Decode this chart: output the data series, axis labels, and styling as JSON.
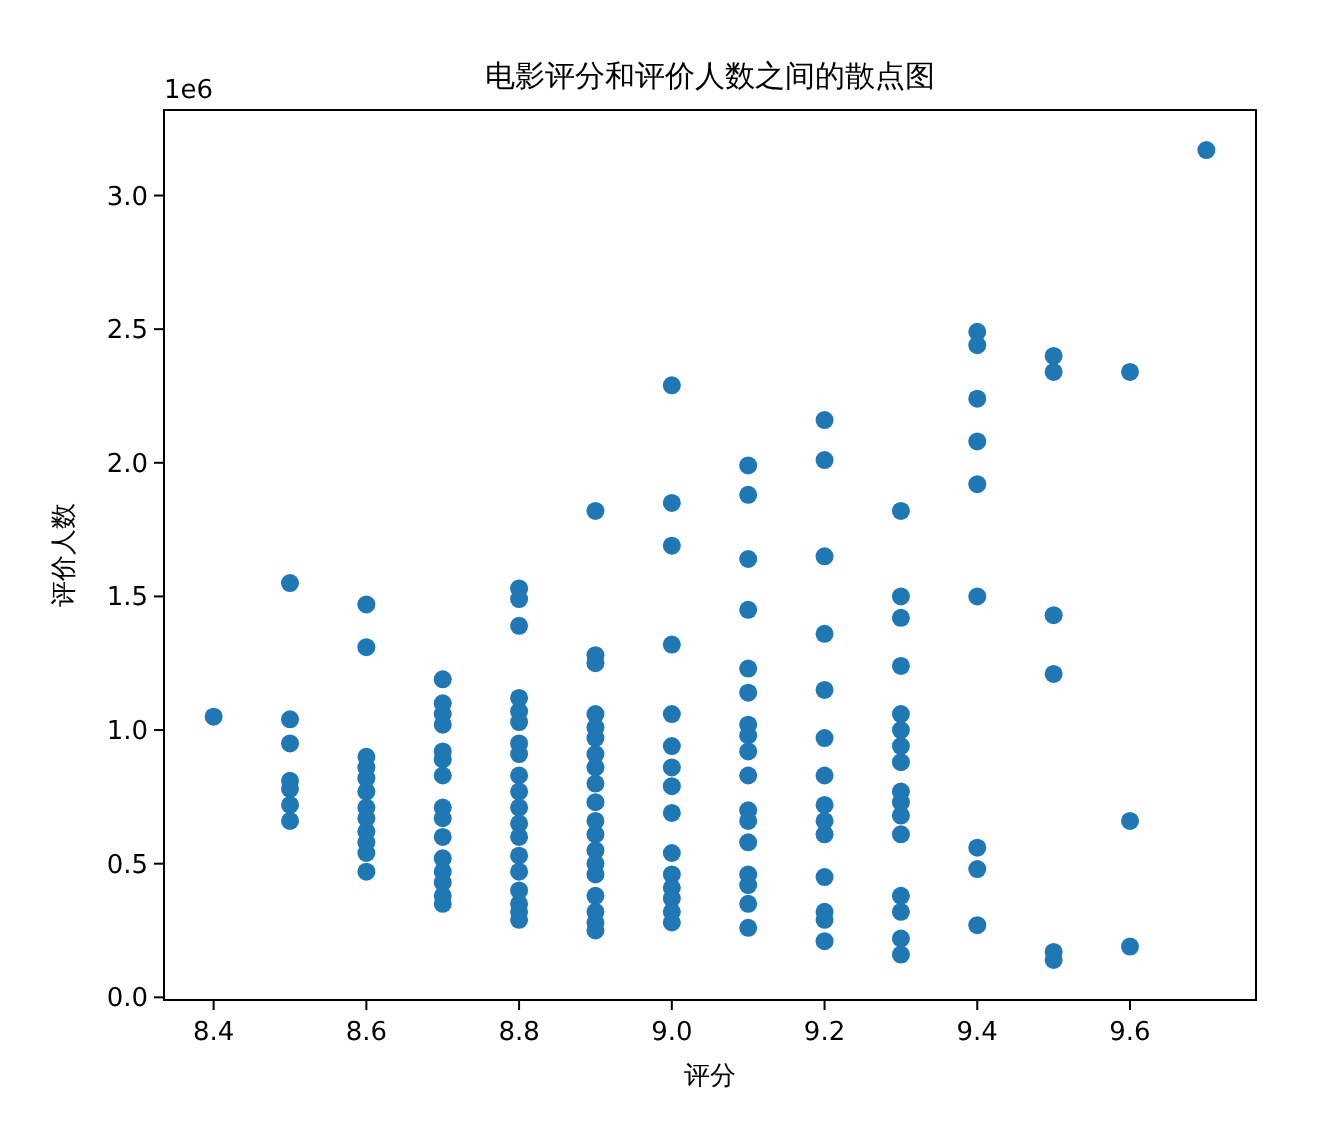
{
  "chart_data": {
    "type": "scatter",
    "title": "电影评分和评价人数之间的散点图",
    "xlabel": "评分",
    "ylabel": "评价人数",
    "annotations": [
      "1e6"
    ],
    "series": [
      {
        "color": "#1f77b4",
        "x": [
          8.4,
          8.5,
          8.5,
          8.5,
          8.5,
          8.5,
          8.5,
          8.5,
          8.6,
          8.6,
          8.6,
          8.6,
          8.6,
          8.6,
          8.6,
          8.6,
          8.6,
          8.6,
          8.6,
          8.6,
          8.7,
          8.7,
          8.7,
          8.7,
          8.7,
          8.7,
          8.7,
          8.7,
          8.7,
          8.7,
          8.7,
          8.7,
          8.7,
          8.7,
          8.7,
          8.8,
          8.8,
          8.8,
          8.8,
          8.8,
          8.8,
          8.8,
          8.8,
          8.8,
          8.8,
          8.8,
          8.8,
          8.8,
          8.8,
          8.8,
          8.8,
          8.8,
          8.8,
          8.8,
          8.9,
          8.9,
          8.9,
          8.9,
          8.9,
          8.9,
          8.9,
          8.9,
          8.9,
          8.9,
          8.9,
          8.9,
          8.9,
          8.9,
          8.9,
          8.9,
          8.9,
          8.9,
          8.9,
          9.0,
          9.0,
          9.0,
          9.0,
          9.0,
          9.0,
          9.0,
          9.0,
          9.0,
          9.0,
          9.0,
          9.0,
          9.0,
          9.0,
          9.0,
          9.1,
          9.1,
          9.1,
          9.1,
          9.1,
          9.1,
          9.1,
          9.1,
          9.1,
          9.1,
          9.1,
          9.1,
          9.1,
          9.1,
          9.1,
          9.1,
          9.1,
          9.2,
          9.2,
          9.2,
          9.2,
          9.2,
          9.2,
          9.2,
          9.2,
          9.2,
          9.2,
          9.2,
          9.2,
          9.2,
          9.2,
          9.3,
          9.3,
          9.3,
          9.3,
          9.3,
          9.3,
          9.3,
          9.3,
          9.3,
          9.3,
          9.3,
          9.3,
          9.3,
          9.3,
          9.3,
          9.3,
          9.4,
          9.4,
          9.4,
          9.4,
          9.4,
          9.4,
          9.4,
          9.4,
          9.4,
          9.5,
          9.5,
          9.5,
          9.5,
          9.5,
          9.5,
          9.6,
          9.6,
          9.6,
          9.7
        ],
        "values": [
          1.05,
          1.55,
          1.04,
          0.95,
          0.81,
          0.78,
          0.72,
          0.66,
          1.47,
          1.31,
          0.9,
          0.86,
          0.82,
          0.77,
          0.71,
          0.67,
          0.62,
          0.58,
          0.54,
          0.47,
          1.19,
          1.1,
          1.06,
          1.02,
          0.92,
          0.89,
          0.83,
          0.71,
          0.67,
          0.6,
          0.52,
          0.47,
          0.43,
          0.38,
          0.35,
          1.53,
          1.49,
          1.39,
          1.12,
          1.07,
          1.03,
          0.95,
          0.91,
          0.83,
          0.77,
          0.71,
          0.65,
          0.6,
          0.53,
          0.47,
          0.4,
          0.35,
          0.32,
          0.29,
          1.82,
          1.28,
          1.25,
          1.06,
          1.01,
          0.97,
          0.91,
          0.86,
          0.8,
          0.73,
          0.66,
          0.61,
          0.55,
          0.5,
          0.46,
          0.38,
          0.32,
          0.28,
          0.25,
          2.29,
          1.85,
          1.69,
          1.32,
          1.06,
          0.94,
          0.86,
          0.79,
          0.69,
          0.54,
          0.46,
          0.41,
          0.37,
          0.32,
          0.28,
          1.99,
          1.88,
          1.64,
          1.45,
          1.23,
          1.14,
          1.02,
          0.98,
          0.92,
          0.83,
          0.7,
          0.66,
          0.58,
          0.46,
          0.42,
          0.35,
          0.26,
          2.16,
          2.01,
          1.65,
          1.36,
          1.15,
          0.97,
          0.83,
          0.72,
          0.66,
          0.61,
          0.45,
          0.32,
          0.29,
          0.21,
          1.82,
          1.5,
          1.42,
          1.24,
          1.06,
          1.0,
          0.94,
          0.88,
          0.77,
          0.73,
          0.68,
          0.61,
          0.38,
          0.32,
          0.22,
          0.16,
          2.49,
          2.44,
          2.24,
          2.08,
          1.92,
          1.5,
          0.56,
          0.48,
          0.27,
          2.4,
          2.34,
          1.43,
          1.21,
          0.17,
          0.14,
          2.34,
          0.66,
          0.19,
          3.17
        ]
      }
    ],
    "marker": "circle",
    "xlim": [
      8.335,
      9.765
    ],
    "ylim": [
      -0.01,
      3.32
    ],
    "xticks": [
      8.4,
      8.6,
      8.8,
      {
        "value": 9.0,
        "label": "9.0"
      },
      9.2,
      9.4,
      9.6
    ],
    "yticks": [
      {
        "value": 0,
        "label": "0.0"
      },
      0.5,
      {
        "value": 1,
        "label": "1.0"
      },
      1.5,
      {
        "value": 2,
        "label": "2.0"
      },
      2.5,
      {
        "value": 3,
        "label": "3.0"
      }
    ]
  }
}
